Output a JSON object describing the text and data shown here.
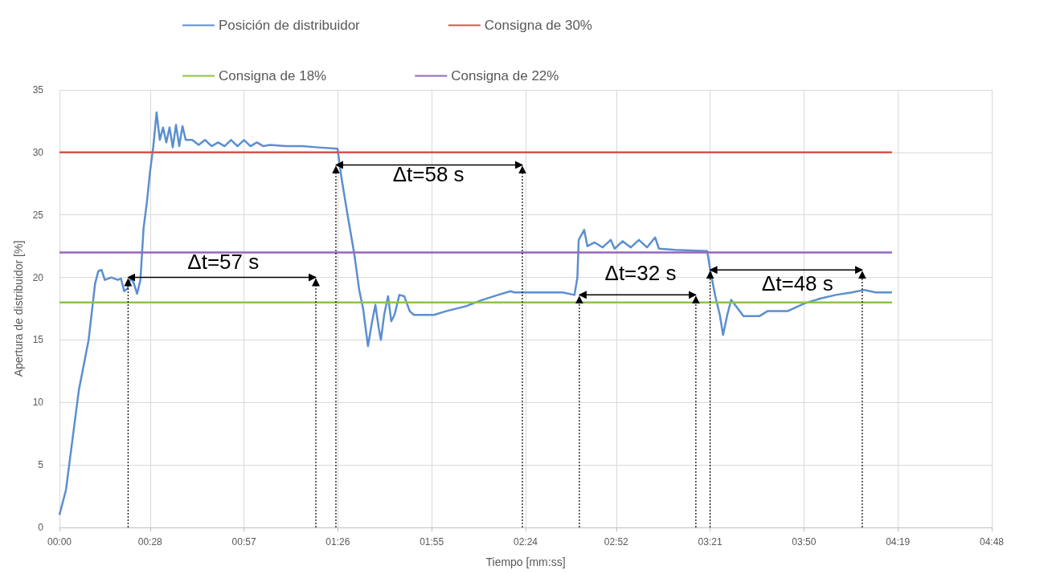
{
  "chart_data": {
    "type": "line",
    "xlabel": "Tiempo [mm:ss]",
    "ylabel": "Apertura de distribuidor [%]",
    "xlim": [
      0,
      288
    ],
    "xticks": [
      {
        "value": 0,
        "label": "00:00"
      },
      {
        "value": 28,
        "label": "00:28"
      },
      {
        "value": 57,
        "label": "00:57"
      },
      {
        "value": 86,
        "label": "01:26"
      },
      {
        "value": 115,
        "label": "01:55"
      },
      {
        "value": 144,
        "label": "02:24"
      },
      {
        "value": 172,
        "label": "02:52"
      },
      {
        "value": 201,
        "label": "03:21"
      },
      {
        "value": 230,
        "label": "03:50"
      },
      {
        "value": 259,
        "label": "04:19"
      },
      {
        "value": 288,
        "label": "04:48"
      }
    ],
    "ylim": [
      0,
      35
    ],
    "yticks": [
      0,
      5,
      10,
      15,
      20,
      25,
      30,
      35
    ],
    "grid": true,
    "legend": "top",
    "marker": "none",
    "line_style": "solid",
    "series": [
      {
        "name": "Posición de distribuidor",
        "color": "#5b8fd0",
        "x": [
          0,
          2,
          4,
          6,
          9,
          11,
          12,
          13,
          14,
          16,
          18,
          19,
          20,
          21,
          22,
          23,
          24,
          25,
          26,
          27,
          28,
          29,
          30,
          31,
          32,
          33,
          34,
          35,
          36,
          37,
          38,
          39,
          41,
          43,
          45,
          47,
          49,
          51,
          53,
          55,
          57,
          59,
          61,
          63,
          65,
          70,
          75,
          80,
          85.9,
          87.1,
          89,
          91,
          92.6,
          93.8,
          95.3,
          96.6,
          97.6,
          98.6,
          99.3,
          100.3,
          101.5,
          102.5,
          103.5,
          105,
          106.5,
          108.2,
          109.5,
          115.7,
          119.4,
          125.6,
          130.6,
          135.5,
          139.3,
          140.5,
          145.5,
          155.4,
          159.1,
          160,
          160.4,
          162.1,
          163.1,
          165.3,
          167.8,
          170.3,
          171.5,
          174,
          176.5,
          179,
          181.5,
          184,
          185.2,
          190.2,
          200.1,
          201.1,
          202.6,
          204,
          205,
          206.3,
          207.5,
          209.3,
          211.3,
          216.2,
          218.7,
          224.9,
          229.9,
          234.9,
          239.8,
          244.8,
          248.5,
          252.2,
          257.2
        ],
        "values": [
          1,
          3,
          7,
          11,
          15,
          19.5,
          20.5,
          20.6,
          19.8,
          20,
          19.8,
          19.9,
          18.9,
          19.1,
          20,
          19.5,
          18.7,
          19.8,
          24,
          26,
          28.5,
          30.5,
          33.2,
          31,
          32,
          30.8,
          32,
          30.4,
          32.2,
          30.5,
          32.1,
          31,
          31,
          30.6,
          31,
          30.5,
          30.8,
          30.5,
          31,
          30.5,
          31,
          30.5,
          30.8,
          30.5,
          30.6,
          30.5,
          30.5,
          30.4,
          30.3,
          28,
          25,
          22,
          19,
          17.5,
          14.5,
          16.5,
          17.8,
          16,
          15,
          17,
          18.5,
          16.5,
          17,
          18.6,
          18.5,
          17.3,
          17,
          17,
          17.3,
          17.7,
          18.2,
          18.6,
          18.9,
          18.8,
          18.8,
          18.8,
          18.6,
          20,
          23,
          23.8,
          22.5,
          22.8,
          22.4,
          23,
          22.3,
          22.9,
          22.4,
          23,
          22.4,
          23.2,
          22.3,
          22.2,
          22.1,
          20.5,
          18.5,
          17,
          15.4,
          17,
          18.2,
          17.6,
          16.9,
          16.9,
          17.3,
          17.3,
          17.9,
          18.3,
          18.6,
          18.8,
          19,
          18.8,
          18.8
        ]
      },
      {
        "name": "Consigna de 30%",
        "color": "#d9534f",
        "x": [
          0,
          257.2
        ],
        "values": [
          30,
          30
        ]
      },
      {
        "name": "Consigna de 18%",
        "color": "#8dc34a",
        "x": [
          0,
          257.2
        ],
        "values": [
          18,
          18
        ]
      },
      {
        "name": "Consigna de 22%",
        "color": "#9467bd",
        "x": [
          0,
          257.2
        ],
        "values": [
          22,
          22
        ]
      }
    ],
    "annotations": [
      "Δt=57 s",
      "Δt=58 s",
      "Δt=32 s",
      "Δt=48 s"
    ]
  }
}
